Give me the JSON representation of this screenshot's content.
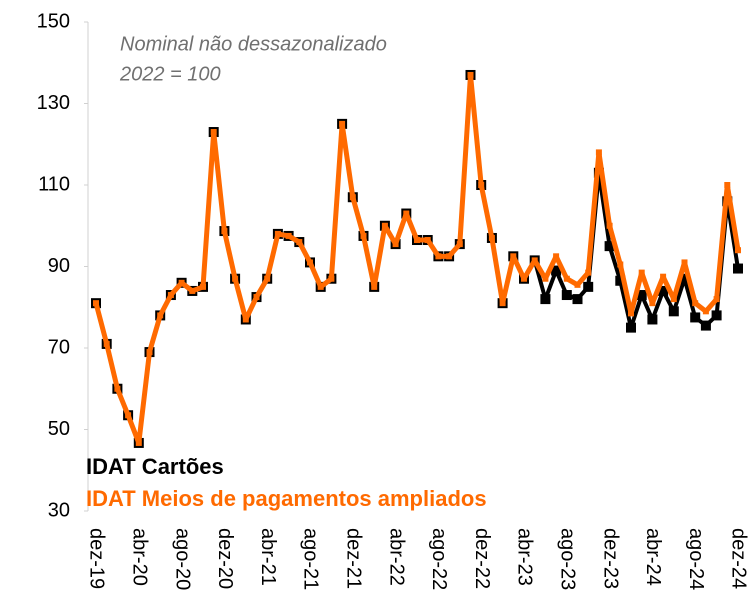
{
  "chart_data": {
    "type": "line",
    "annotations": [
      "Nominal não dessazonalizado",
      "2022 = 100"
    ],
    "categories": [
      "dez-19",
      null,
      null,
      null,
      "abr-20",
      null,
      null,
      null,
      "ago-20",
      null,
      null,
      null,
      "dez-20",
      null,
      null,
      null,
      "abr-21",
      null,
      null,
      null,
      "ago-21",
      null,
      null,
      null,
      "dez-21",
      null,
      null,
      null,
      "abr-22",
      null,
      null,
      null,
      "ago-22",
      null,
      null,
      null,
      "dez-22",
      null,
      null,
      null,
      "abr-23",
      null,
      null,
      null,
      "ago-23",
      null,
      null,
      null,
      "dez-23",
      null,
      null,
      null,
      "abr-24",
      null,
      null,
      null,
      "ago-24",
      null,
      null,
      null,
      "dez-24"
    ],
    "series": [
      {
        "name": "IDAT Cartões",
        "color": "#000000",
        "values": [
          81,
          71,
          60,
          53.5,
          46.7,
          69,
          78,
          83,
          86,
          84,
          85,
          123,
          98.7,
          87,
          77,
          82.5,
          87,
          98,
          97.5,
          96,
          91,
          85,
          87,
          125,
          107,
          97.5,
          85,
          100,
          95.5,
          103,
          96.5,
          96.5,
          92.5,
          92.5,
          95.5,
          137,
          110,
          97,
          81,
          92.5,
          87,
          91.5,
          82,
          89,
          83,
          82,
          85,
          113,
          95,
          86.5,
          75,
          83,
          77,
          84,
          79,
          87,
          77.5,
          75.5,
          78,
          106,
          89.5
        ]
      },
      {
        "name": "IDAT Meios de pagamentos ampliados",
        "color": "#ff6a00",
        "values": [
          81,
          71,
          60,
          53.5,
          46.7,
          69,
          78,
          83,
          86,
          84,
          85,
          123,
          98.7,
          87,
          77,
          82.5,
          87,
          98,
          97.5,
          96,
          91,
          85,
          87,
          125,
          107,
          97.5,
          85,
          100,
          95.5,
          103,
          96.5,
          96.5,
          92.5,
          92.5,
          95.5,
          137,
          110,
          97,
          81,
          92.5,
          87,
          91.5,
          87,
          92.5,
          87,
          85.5,
          88.5,
          118,
          100,
          90.5,
          78.5,
          88.5,
          81,
          87.5,
          82,
          91,
          81,
          79,
          82,
          110,
          94
        ]
      }
    ],
    "ylim": [
      30,
      150
    ],
    "yticks": [
      30,
      50,
      70,
      90,
      110,
      130,
      150
    ],
    "grid": false
  }
}
